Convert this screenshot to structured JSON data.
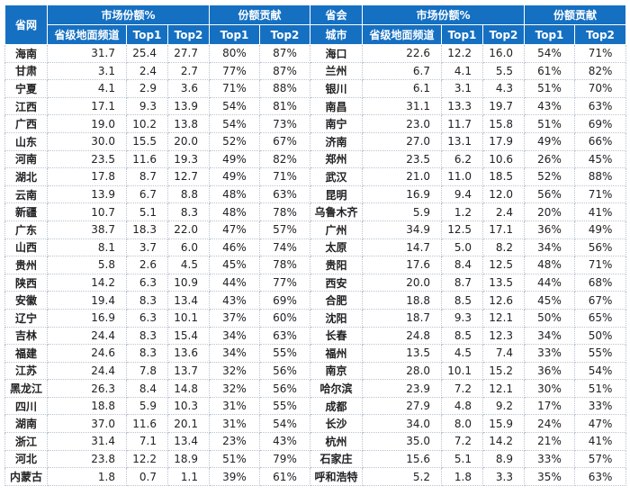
{
  "header": {
    "province": "省网",
    "share_left": "市场份额%",
    "contrib_left": "份额贡献",
    "city_top": "省会",
    "city_bottom": "城市",
    "share_right": "市场份额%",
    "contrib_right": "份额贡献",
    "sub_left": [
      "省级地面频道",
      "Top1",
      "Top2",
      "Top1",
      "Top2"
    ],
    "sub_right": [
      "省级地面频道",
      "Top1",
      "Top2",
      "Top1",
      "Top2"
    ]
  },
  "rows": [
    [
      "海南",
      "31.7",
      "25.4",
      "27.7",
      "80%",
      "87%",
      "海口",
      "22.6",
      "12.2",
      "16.0",
      "54%",
      "71%"
    ],
    [
      "甘肃",
      "3.1",
      "2.4",
      "2.7",
      "77%",
      "87%",
      "兰州",
      "6.7",
      "4.1",
      "5.5",
      "61%",
      "82%"
    ],
    [
      "宁夏",
      "4.1",
      "2.9",
      "3.6",
      "71%",
      "88%",
      "银川",
      "6.1",
      "3.1",
      "4.3",
      "51%",
      "70%"
    ],
    [
      "江西",
      "17.1",
      "9.3",
      "13.9",
      "54%",
      "81%",
      "南昌",
      "31.1",
      "13.3",
      "19.7",
      "43%",
      "63%"
    ],
    [
      "广西",
      "19.0",
      "10.2",
      "13.8",
      "54%",
      "73%",
      "南宁",
      "23.0",
      "11.7",
      "15.8",
      "51%",
      "69%"
    ],
    [
      "山东",
      "30.0",
      "15.5",
      "20.0",
      "52%",
      "67%",
      "济南",
      "27.0",
      "13.1",
      "17.9",
      "49%",
      "66%"
    ],
    [
      "河南",
      "23.5",
      "11.6",
      "19.3",
      "49%",
      "82%",
      "郑州",
      "23.5",
      "6.2",
      "10.6",
      "26%",
      "45%"
    ],
    [
      "湖北",
      "17.8",
      "8.7",
      "12.7",
      "49%",
      "71%",
      "武汉",
      "21.0",
      "11.0",
      "18.5",
      "52%",
      "88%"
    ],
    [
      "云南",
      "13.9",
      "6.7",
      "8.8",
      "48%",
      "63%",
      "昆明",
      "16.9",
      "9.4",
      "12.0",
      "56%",
      "71%"
    ],
    [
      "新疆",
      "10.7",
      "5.1",
      "8.3",
      "48%",
      "78%",
      "乌鲁木齐",
      "5.9",
      "1.2",
      "2.4",
      "20%",
      "41%"
    ],
    [
      "广东",
      "38.7",
      "18.3",
      "22.0",
      "47%",
      "57%",
      "广州",
      "34.9",
      "12.5",
      "17.1",
      "36%",
      "49%"
    ],
    [
      "山西",
      "8.1",
      "3.7",
      "6.0",
      "46%",
      "74%",
      "太原",
      "14.7",
      "5.0",
      "8.2",
      "34%",
      "56%"
    ],
    [
      "贵州",
      "5.8",
      "2.6",
      "4.5",
      "45%",
      "78%",
      "贵阳",
      "17.6",
      "8.4",
      "12.5",
      "48%",
      "71%"
    ],
    [
      "陕西",
      "14.2",
      "6.3",
      "10.9",
      "44%",
      "77%",
      "西安",
      "20.0",
      "8.7",
      "13.5",
      "44%",
      "68%"
    ],
    [
      "安徽",
      "19.4",
      "8.3",
      "13.4",
      "43%",
      "69%",
      "合肥",
      "18.8",
      "8.5",
      "12.6",
      "45%",
      "67%"
    ],
    [
      "辽宁",
      "16.9",
      "6.3",
      "10.1",
      "37%",
      "60%",
      "沈阳",
      "18.7",
      "9.3",
      "12.1",
      "50%",
      "65%"
    ],
    [
      "吉林",
      "24.4",
      "8.3",
      "15.4",
      "34%",
      "63%",
      "长春",
      "24.8",
      "8.5",
      "12.3",
      "34%",
      "50%"
    ],
    [
      "福建",
      "24.6",
      "8.3",
      "13.6",
      "34%",
      "55%",
      "福州",
      "13.5",
      "4.5",
      "7.4",
      "33%",
      "55%"
    ],
    [
      "江苏",
      "24.4",
      "7.8",
      "13.7",
      "32%",
      "56%",
      "南京",
      "28.0",
      "10.1",
      "15.2",
      "36%",
      "54%"
    ],
    [
      "黑龙江",
      "26.3",
      "8.4",
      "14.8",
      "32%",
      "56%",
      "哈尔滨",
      "23.9",
      "7.2",
      "12.1",
      "30%",
      "51%"
    ],
    [
      "四川",
      "18.8",
      "5.9",
      "10.3",
      "31%",
      "55%",
      "成都",
      "27.9",
      "4.8",
      "9.2",
      "17%",
      "33%"
    ],
    [
      "湖南",
      "37.0",
      "11.6",
      "20.1",
      "31%",
      "54%",
      "长沙",
      "34.0",
      "8.0",
      "15.9",
      "24%",
      "47%"
    ],
    [
      "浙江",
      "31.4",
      "7.1",
      "13.4",
      "23%",
      "43%",
      "杭州",
      "35.0",
      "7.2",
      "14.2",
      "21%",
      "41%"
    ],
    [
      "河北",
      "23.8",
      "12.2",
      "18.9",
      "51%",
      "79%",
      "石家庄",
      "15.6",
      "5.1",
      "8.9",
      "33%",
      "57%"
    ],
    [
      "内蒙古",
      "1.8",
      "0.7",
      "1.1",
      "39%",
      "61%",
      "呼和浩特",
      "5.2",
      "1.8",
      "3.3",
      "35%",
      "63%"
    ]
  ]
}
